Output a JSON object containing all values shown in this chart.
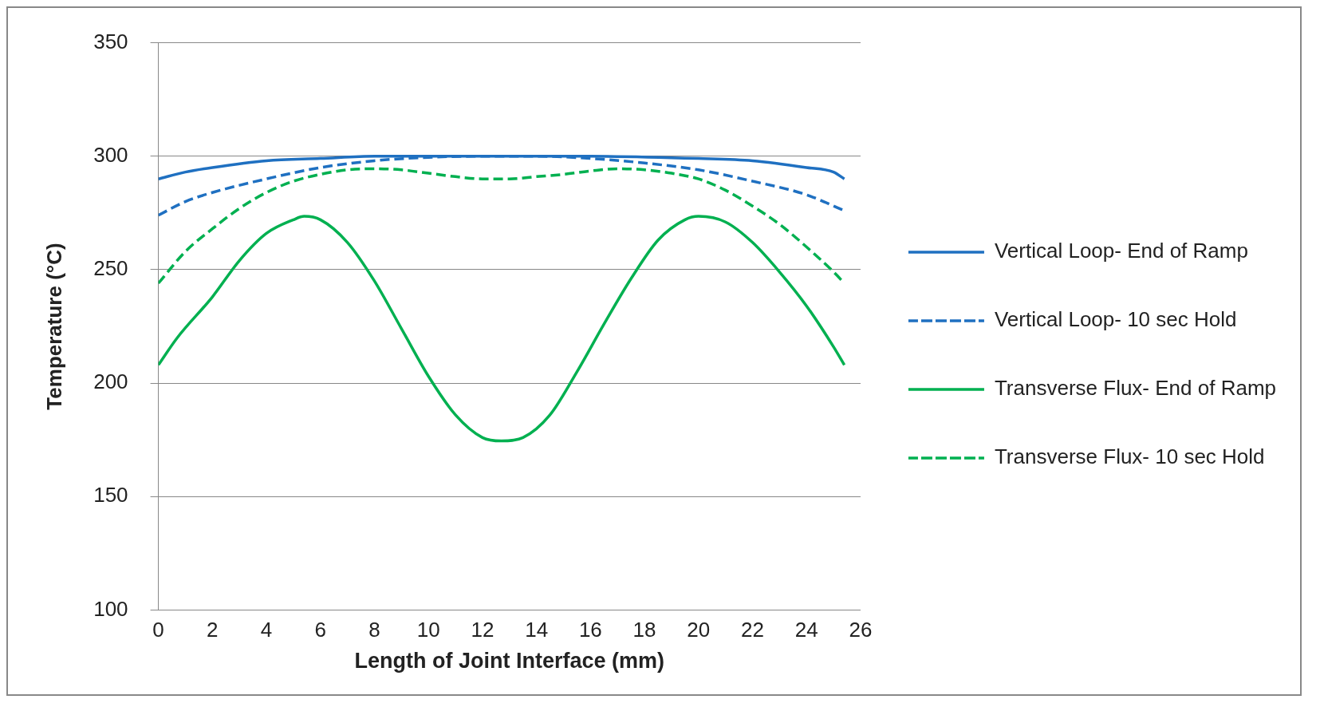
{
  "chart_data": {
    "type": "line",
    "xlabel": "Length of Joint Interface (mm)",
    "ylabel": "Temperature (°C)",
    "xlim": [
      0,
      26
    ],
    "xticks": [
      0,
      2,
      4,
      6,
      8,
      10,
      12,
      14,
      16,
      18,
      20,
      22,
      24,
      26
    ],
    "ylim": [
      100,
      350
    ],
    "yticks": [
      100,
      150,
      200,
      250,
      300,
      350
    ],
    "grid": "y",
    "legend": "right",
    "marker": "none",
    "series": [
      {
        "name": "Vertical Loop- End of Ramp",
        "color": "#1f70c1",
        "line_style": "solid",
        "x": [
          0,
          1,
          2,
          4,
          6,
          8,
          12,
          16,
          20,
          22,
          24,
          25,
          25.4
        ],
        "values": [
          290,
          293,
          295,
          298,
          299,
          300,
          300,
          300,
          299,
          298,
          295,
          293,
          290
        ]
      },
      {
        "name": "Vertical Loop- 10 sec Hold",
        "color": "#1f70c1",
        "line_style": "dashed",
        "x": [
          0,
          1,
          2,
          4,
          6,
          8,
          10,
          12,
          14,
          16,
          18,
          20,
          22,
          24,
          25.4
        ],
        "values": [
          274,
          280,
          284,
          290,
          295,
          298,
          299.5,
          300,
          300,
          299,
          297,
          294,
          289,
          283,
          276
        ]
      },
      {
        "name": "Transverse Flux- End of Ramp",
        "color": "#00b050",
        "line_style": "solid",
        "x": [
          0,
          0.7,
          2,
          3,
          4,
          5,
          5.4,
          6,
          7,
          8,
          9,
          10,
          11,
          12,
          12.7,
          13.5,
          14.5,
          15.5,
          16.5,
          17.5,
          18.5,
          19.5,
          20,
          21,
          22,
          23,
          24,
          25,
          25.4
        ],
        "values": [
          208,
          220,
          238,
          254,
          266,
          272,
          273.5,
          272,
          262,
          245,
          224,
          203,
          186,
          176,
          174.5,
          176,
          186,
          205,
          226,
          246,
          263,
          272,
          273.5,
          271,
          262,
          249,
          234,
          216,
          208
        ]
      },
      {
        "name": "Transverse Flux- 10 sec Hold",
        "color": "#00b050",
        "line_style": "dashed",
        "x": [
          0,
          1,
          2,
          3,
          4,
          5,
          6,
          7,
          8,
          9,
          10,
          11,
          12,
          13,
          14,
          15,
          16,
          17,
          18,
          19,
          20,
          21,
          22,
          23,
          24,
          25,
          25.4
        ],
        "values": [
          244,
          258,
          268,
          277,
          284,
          289,
          292,
          294,
          294.5,
          294,
          292.5,
          291,
          290,
          290,
          291,
          292,
          293.5,
          294.5,
          294,
          292.5,
          290,
          285,
          278,
          270,
          260,
          249,
          244
        ]
      }
    ]
  }
}
